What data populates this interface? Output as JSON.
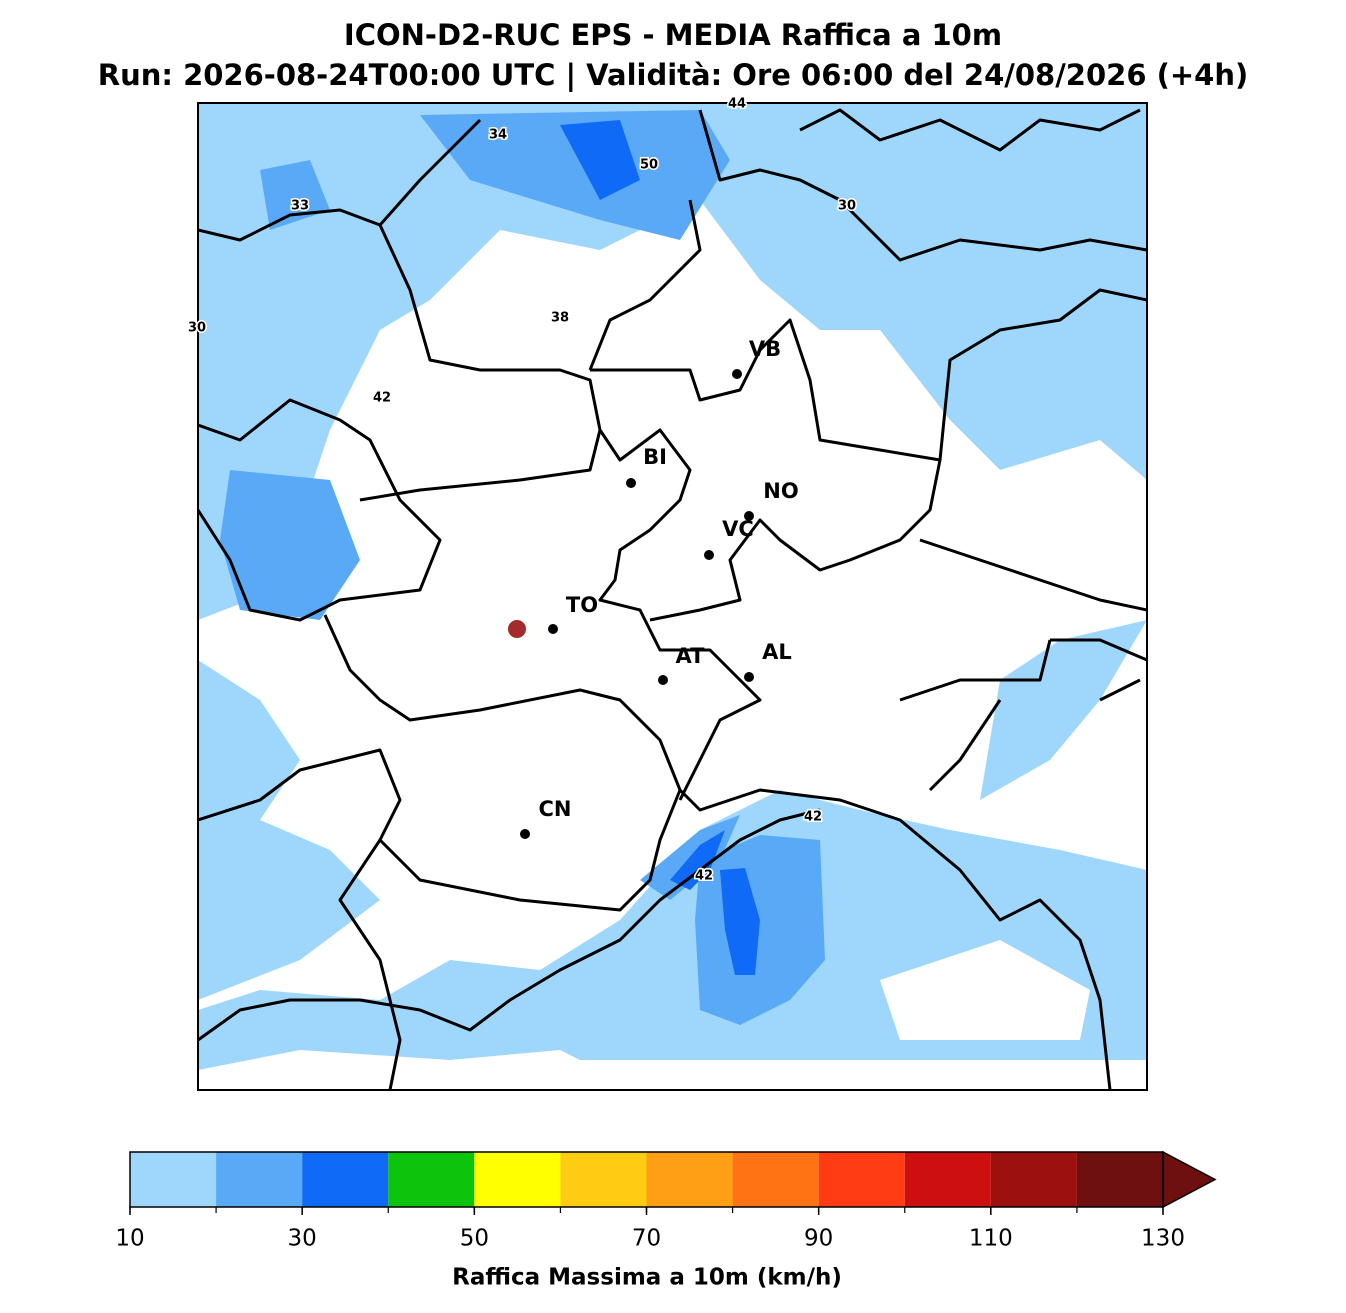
{
  "title": "ICON-D2-RUC EPS - MEDIA Raffica a 10m",
  "subtitle": "Run: 2026-08-24T00:00 UTC | Validità: Ore 06:00 del 24/08/2026 (+4h)",
  "cities": [
    "VB",
    "BI",
    "NO",
    "VC",
    "TO",
    "AT",
    "AL",
    "CN"
  ],
  "contour_labels": [
    44,
    34,
    50,
    33,
    30,
    38,
    30,
    42,
    42,
    42
  ],
  "colorbar": {
    "bounds": [
      10,
      20,
      30,
      40,
      50,
      60,
      70,
      80,
      90,
      100,
      110,
      120,
      130
    ],
    "colors": [
      "#9fd7fc",
      "#5aa9f7",
      "#0f6af5",
      "#0cc40c",
      "#ffff00",
      "#ffcc14",
      "#ff9f14",
      "#ff7314",
      "#ff3c14",
      "#cc1010",
      "#9c1010",
      "#6e1010"
    ],
    "ticks": [
      10,
      30,
      50,
      70,
      90,
      110,
      130
    ],
    "extend": "max",
    "label": "Raffica Massima a 10m (km/h)"
  }
}
